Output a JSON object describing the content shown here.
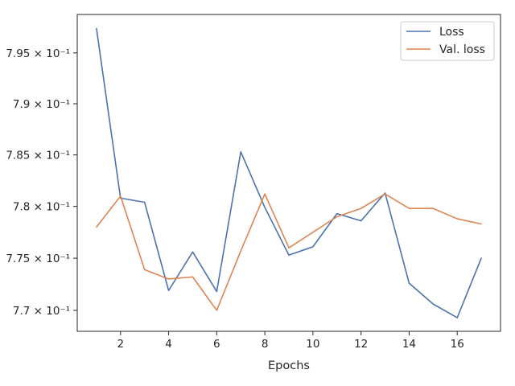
{
  "chart_data": {
    "type": "line",
    "title": "",
    "xlabel": "Epochs",
    "ylabel": "",
    "x": [
      1,
      2,
      3,
      4,
      5,
      6,
      7,
      8,
      9,
      10,
      11,
      12,
      13,
      14,
      15,
      16,
      17
    ],
    "series": [
      {
        "name": "Loss",
        "color": "#4c72b0",
        "values": [
          0.7974,
          0.7808,
          0.7804,
          0.7719,
          0.7756,
          0.7718,
          0.7853,
          0.7799,
          0.7753,
          0.7761,
          0.7793,
          0.7786,
          0.7813,
          0.7726,
          0.7706,
          0.7693,
          0.775
        ]
      },
      {
        "name": "Val. loss",
        "color": "#dd8452",
        "values": [
          0.778,
          0.781,
          0.7739,
          0.773,
          0.7732,
          0.77,
          0.7757,
          0.7812,
          0.776,
          0.7775,
          0.779,
          0.7798,
          0.7812,
          0.7798,
          0.7798,
          0.7788,
          0.7783
        ]
      }
    ],
    "xticks": [
      {
        "value": 2,
        "label": "2"
      },
      {
        "value": 4,
        "label": "4"
      },
      {
        "value": 6,
        "label": "6"
      },
      {
        "value": 8,
        "label": "8"
      },
      {
        "value": 10,
        "label": "10"
      },
      {
        "value": 12,
        "label": "12"
      },
      {
        "value": 14,
        "label": "14"
      },
      {
        "value": 16,
        "label": "16"
      }
    ],
    "yticks": [
      {
        "value": 0.77,
        "label": "7.7 × 10⁻¹"
      },
      {
        "value": 0.775,
        "label": "7.75 × 10⁻¹"
      },
      {
        "value": 0.78,
        "label": "7.8 × 10⁻¹"
      },
      {
        "value": 0.785,
        "label": "7.85 × 10⁻¹"
      },
      {
        "value": 0.79,
        "label": "7.9 × 10⁻¹"
      },
      {
        "value": 0.795,
        "label": "7.95 × 10⁻¹"
      }
    ],
    "xlim": [
      0.2,
      17.8
    ],
    "ylim": [
      0.768,
      0.7988
    ],
    "yscale": "log",
    "grid": false,
    "legend": "top-right"
  }
}
